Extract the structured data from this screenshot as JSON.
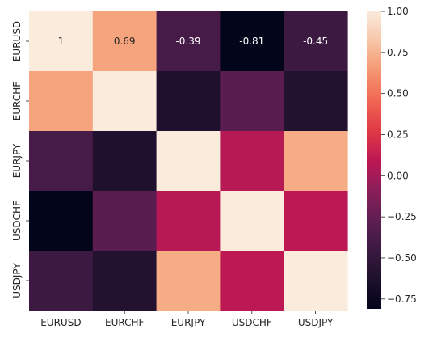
{
  "chart_data": {
    "type": "heatmap",
    "title": "",
    "xlabel": "",
    "ylabel": "",
    "x_categories": [
      "EURUSD",
      "EURCHF",
      "EURJPY",
      "USDCHF",
      "USDJPY"
    ],
    "y_categories": [
      "EURUSD",
      "EURCHF",
      "EURJPY",
      "USDCHF",
      "USDJPY"
    ],
    "values": [
      [
        1.0,
        0.69,
        -0.39,
        -0.81,
        -0.45
      ],
      [
        0.69,
        1.0,
        -0.62,
        -0.3,
        -0.6
      ],
      [
        -0.39,
        -0.62,
        1.0,
        0.07,
        0.72
      ],
      [
        -0.81,
        -0.3,
        0.07,
        1.0,
        0.09
      ],
      [
        -0.45,
        -0.6,
        0.72,
        0.09,
        1.0
      ]
    ],
    "annotated_row": 0,
    "annotations": [
      "1",
      "0.69",
      "-0.39",
      "-0.81",
      "-0.45"
    ],
    "color_range": [
      -0.81,
      1.0
    ],
    "colorbar_ticks": [
      "1.00",
      "0.75",
      "0.50",
      "0.25",
      "0.00",
      "−0.25",
      "−0.50",
      "−0.75"
    ],
    "colorbar_tick_values": [
      1.0,
      0.75,
      0.5,
      0.25,
      0.0,
      -0.25,
      -0.5,
      -0.75
    ],
    "colormap": "rocket"
  }
}
